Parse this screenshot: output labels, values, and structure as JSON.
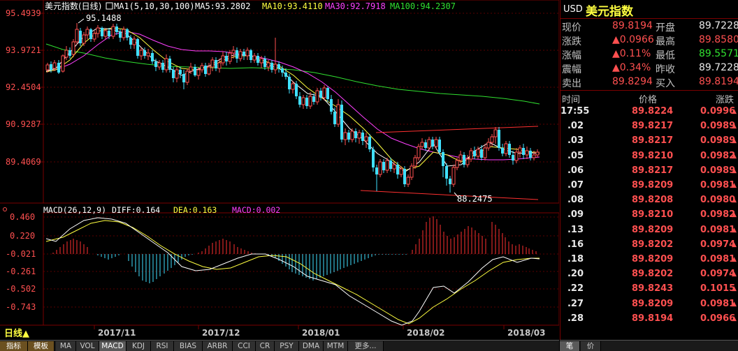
{
  "main_chart": {
    "legend_title": "美元指数(日线)",
    "legend_ma": "MA1(5,10,30,100)",
    "legend_ma5": "MA5:93.2802",
    "legend_ma10": "MA10:93.4110",
    "legend_ma30": "MA30:92.7918",
    "legend_ma100": "MA100:94.2307",
    "y_labels": [
      "95.4939",
      "93.9721",
      "92.4504",
      "90.9287",
      "89.4069"
    ],
    "high_label": "95.1488",
    "low_label": "88.2475",
    "period_label": "日线▲",
    "x_labels": [
      "2017/11",
      "2017/12",
      "2018/01",
      "2018/02",
      "2018/03"
    ],
    "colors": {
      "up": "#ff5050",
      "down": "#40e0ff",
      "ma5": "#ffffff",
      "ma10": "#ffff40",
      "ma30": "#ff40ff",
      "ma100": "#30e030",
      "channel": "#ff3030"
    }
  },
  "macd": {
    "legend_name": "MACD(26,12,9)",
    "legend_diff": "DIFF:0.164",
    "legend_dea": "DEA:0.163",
    "legend_macd": "MACD:0.002",
    "y_labels": [
      "0.460",
      "0.220",
      "-0.021",
      "-0.261",
      "-0.502",
      "-0.743"
    ]
  },
  "quote": {
    "symbol": "USD",
    "name": "美元指数",
    "rows": [
      {
        "l1": "现价",
        "v1": "89.8194",
        "l2": "开盘",
        "v2": "89.7228",
        "c1": "red",
        "c2": "white"
      },
      {
        "l1": "涨跌",
        "v1": "▲0.0966",
        "l2": "最高",
        "v2": "89.8580",
        "c1": "red",
        "c2": "red"
      },
      {
        "l1": "涨幅",
        "v1": "▲0.11%",
        "l2": "最低",
        "v2": "89.5571",
        "c1": "red",
        "c2": "green"
      },
      {
        "l1": "震幅",
        "v1": "▲0.34%",
        "l2": "昨收",
        "v2": "89.7228",
        "c1": "red",
        "c2": "white"
      },
      {
        "l1": "卖出",
        "v1": "89.8294",
        "l2": "买入",
        "v2": "89.8194",
        "c1": "red",
        "c2": "red"
      }
    ],
    "tick_headers": [
      "时间",
      "价格",
      "涨跌"
    ],
    "ticks": [
      {
        "time": "17:55",
        "price": "89.8224",
        "chg": "0.0996"
      },
      {
        "time": ".02",
        "price": "89.8217",
        "chg": "0.0989"
      },
      {
        "time": ".03",
        "price": "89.8217",
        "chg": "0.0989"
      },
      {
        "time": ".05",
        "price": "89.8210",
        "chg": "0.0982"
      },
      {
        "time": ".06",
        "price": "89.8217",
        "chg": "0.0989"
      },
      {
        "time": ".07",
        "price": "89.8209",
        "chg": "0.0981"
      },
      {
        "time": ".08",
        "price": "89.8208",
        "chg": "0.0980"
      },
      {
        "time": ".09",
        "price": "89.8210",
        "chg": "0.0982"
      },
      {
        "time": ".13",
        "price": "89.8209",
        "chg": "0.0981"
      },
      {
        "time": ".16",
        "price": "89.8202",
        "chg": "0.0974"
      },
      {
        "time": ".18",
        "price": "89.8209",
        "chg": "0.0981"
      },
      {
        "time": ".20",
        "price": "89.8202",
        "chg": "0.0974"
      },
      {
        "time": ".22",
        "price": "89.8243",
        "chg": "0.1015"
      },
      {
        "time": ".27",
        "price": "89.8209",
        "chg": "0.0981"
      },
      {
        "time": ".28",
        "price": "89.8194",
        "chg": "0.0966"
      }
    ]
  },
  "tabs": [
    "指标",
    "模板",
    "MA",
    "VOL",
    "MACD",
    "KDJ",
    "RSI",
    "BIAS",
    "ARBR",
    "CCI",
    "CR",
    "PSY",
    "DMA",
    "MTM",
    "更多..."
  ],
  "right_tabs": [
    "笔",
    "价"
  ]
}
